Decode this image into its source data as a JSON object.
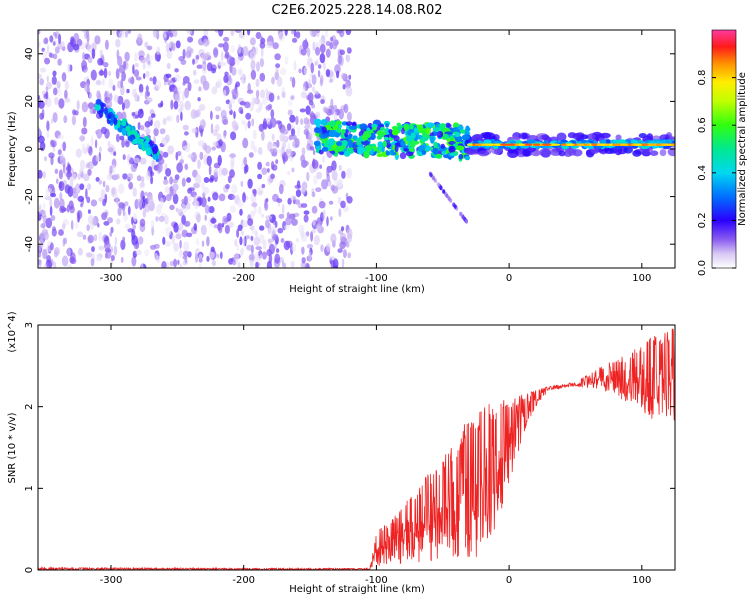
{
  "title": "C2E6.2025.228.14.08.R02",
  "chart_data": [
    {
      "type": "heatmap",
      "xlabel": "Height of straight line (km)",
      "ylabel": "Frequency (Hz)",
      "xlim": [
        -355,
        125
      ],
      "ylim": [
        -50,
        50
      ],
      "x_ticks": [
        -300,
        -200,
        -100,
        0,
        100
      ],
      "y_ticks": [
        -40,
        -20,
        0,
        20,
        40
      ],
      "colorbar": {
        "label": "Normalized spectral amplitude",
        "range": [
          0,
          1
        ],
        "ticks": [
          "0.0",
          "0.2",
          "0.4",
          "0.6",
          "0.8"
        ]
      },
      "features": [
        {
          "description": "noise band",
          "x": [
            -355,
            -120
          ],
          "y": [
            -50,
            50
          ],
          "amplitude": 0.15
        },
        {
          "description": "echo streak",
          "x": [
            -310,
            -265
          ],
          "y": [
            -2,
            18
          ],
          "amplitude": 0.45
        },
        {
          "description": "tracking band",
          "x": [
            -145,
            -30
          ],
          "y": [
            -2,
            12
          ],
          "amplitude": 0.5
        },
        {
          "description": "secondary track",
          "x": [
            -60,
            -30
          ],
          "y": [
            -32,
            -10
          ],
          "amplitude": 0.15
        },
        {
          "description": "steady line",
          "x": [
            -30,
            125
          ],
          "y": [
            0,
            4
          ],
          "amplitude": 0.9
        }
      ],
      "grid": false,
      "colors": {
        "noise": "#9a6cf0",
        "peak": "#ff2a2a"
      }
    },
    {
      "type": "line",
      "xlabel": "Height of straight line (km)",
      "ylabel": "SNR (10 * v/v)",
      "multiplier": "(x10^4)",
      "xlim": [
        -355,
        125
      ],
      "ylim": [
        0,
        3
      ],
      "x_ticks": [
        -300,
        -200,
        -100,
        0,
        100
      ],
      "y_ticks": [
        0,
        1,
        2,
        3
      ],
      "series": [
        {
          "color": "#ee2222",
          "envelope_x": [
            -355,
            -200,
            -105,
            -100,
            -90,
            -60,
            -40,
            -30,
            -20,
            -10,
            0,
            10,
            20,
            30,
            50,
            70,
            90,
            110,
            125
          ],
          "envelope_lo": [
            0.0,
            0.0,
            0.0,
            0.05,
            0.05,
            0.1,
            0.1,
            0.1,
            0.2,
            0.5,
            1.0,
            1.6,
            2.0,
            2.2,
            2.25,
            2.2,
            2.05,
            1.8,
            1.7
          ],
          "envelope_hi": [
            0.03,
            0.02,
            0.02,
            0.5,
            0.6,
            1.2,
            1.6,
            1.9,
            2.0,
            2.1,
            2.1,
            2.15,
            2.2,
            2.25,
            2.3,
            2.5,
            2.65,
            2.9,
            3.0
          ]
        }
      ],
      "grid": false
    }
  ]
}
